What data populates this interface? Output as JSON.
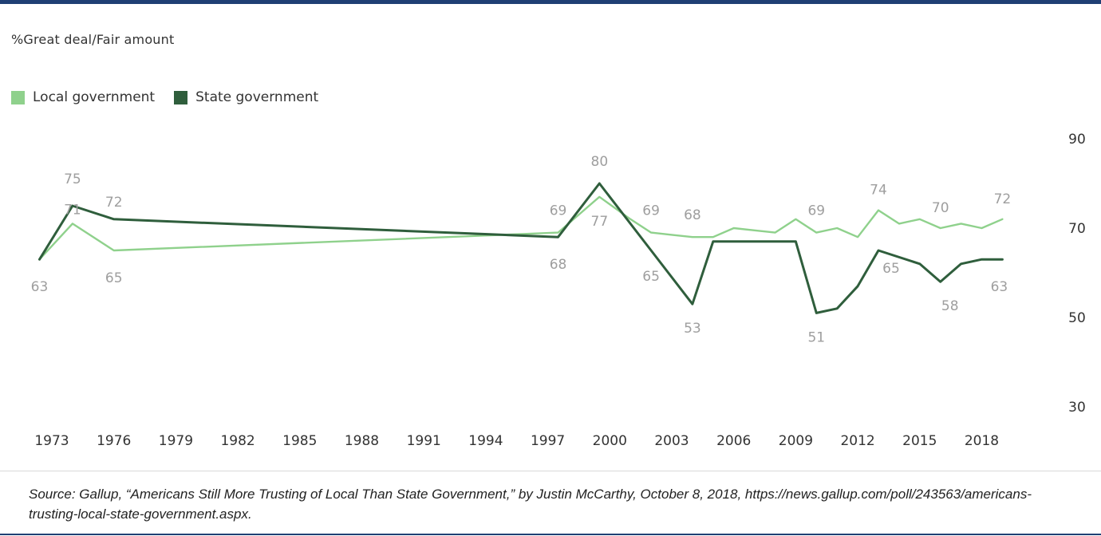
{
  "chart_data": {
    "type": "line",
    "title": "",
    "subtitle": "%Great deal/Fair amount",
    "xlabel": "",
    "ylabel": "",
    "ylim": [
      30,
      90
    ],
    "y_ticks": [
      90,
      70,
      50,
      30
    ],
    "y_axis_side": "right",
    "x_ticks": [
      1973,
      1976,
      1979,
      1982,
      1985,
      1988,
      1991,
      1994,
      1997,
      2000,
      2003,
      2006,
      2009,
      2012,
      2015,
      2018
    ],
    "grid": false,
    "legend_position": "top-left",
    "series": [
      {
        "name": "Local government",
        "color": "#8fd18c",
        "points": [
          {
            "x": 1972.4,
            "y": 63,
            "label": "63"
          },
          {
            "x": 1974,
            "y": 71,
            "label": "71"
          },
          {
            "x": 1976,
            "y": 65,
            "label": "65"
          },
          {
            "x": 1997.5,
            "y": 69,
            "label": "69"
          },
          {
            "x": 1999.5,
            "y": 77,
            "label": "77"
          },
          {
            "x": 2001,
            "y": 72,
            "label": ""
          },
          {
            "x": 2002,
            "y": 69,
            "label": "69"
          },
          {
            "x": 2003,
            "y": 68.5,
            "label": ""
          },
          {
            "x": 2004,
            "y": 68,
            "label": "68"
          },
          {
            "x": 2005,
            "y": 68,
            "label": ""
          },
          {
            "x": 2006,
            "y": 70,
            "label": ""
          },
          {
            "x": 2007,
            "y": 69.5,
            "label": ""
          },
          {
            "x": 2008,
            "y": 69,
            "label": ""
          },
          {
            "x": 2009,
            "y": 72,
            "label": ""
          },
          {
            "x": 2010,
            "y": 69,
            "label": "69"
          },
          {
            "x": 2011,
            "y": 70,
            "label": ""
          },
          {
            "x": 2012,
            "y": 68,
            "label": ""
          },
          {
            "x": 2013,
            "y": 74,
            "label": "74"
          },
          {
            "x": 2014,
            "y": 71,
            "label": ""
          },
          {
            "x": 2015,
            "y": 72,
            "label": ""
          },
          {
            "x": 2016,
            "y": 70,
            "label": "70"
          },
          {
            "x": 2017,
            "y": 71,
            "label": ""
          },
          {
            "x": 2018,
            "y": 70,
            "label": ""
          },
          {
            "x": 2019,
            "y": 72,
            "label": "72"
          }
        ]
      },
      {
        "name": "State government",
        "color": "#2f5e3c",
        "points": [
          {
            "x": 1972.4,
            "y": 63,
            "label": ""
          },
          {
            "x": 1974,
            "y": 75,
            "label": "75"
          },
          {
            "x": 1976,
            "y": 72,
            "label": "72"
          },
          {
            "x": 1997.5,
            "y": 68,
            "label": "68"
          },
          {
            "x": 1999.5,
            "y": 80,
            "label": "80"
          },
          {
            "x": 2002,
            "y": 65,
            "label": "65"
          },
          {
            "x": 2004,
            "y": 53,
            "label": "53"
          },
          {
            "x": 2005,
            "y": 67,
            "label": ""
          },
          {
            "x": 2009,
            "y": 67,
            "label": ""
          },
          {
            "x": 2010,
            "y": 51,
            "label": "51"
          },
          {
            "x": 2011,
            "y": 52,
            "label": ""
          },
          {
            "x": 2012,
            "y": 57,
            "label": ""
          },
          {
            "x": 2013,
            "y": 65,
            "label": "65"
          },
          {
            "x": 2015,
            "y": 62,
            "label": ""
          },
          {
            "x": 2016,
            "y": 58,
            "label": "58"
          },
          {
            "x": 2017,
            "y": 62,
            "label": ""
          },
          {
            "x": 2018,
            "y": 63,
            "label": ""
          },
          {
            "x": 2019,
            "y": 63,
            "label": "63"
          }
        ]
      }
    ]
  },
  "source": {
    "text": "Source: Gallup, “Americans Still More Trusting of Local Than State Government,” by Justin McCarthy, October 8, 2018, https://news.gallup.com/poll/243563/americans-trusting-local-state-government.aspx."
  }
}
